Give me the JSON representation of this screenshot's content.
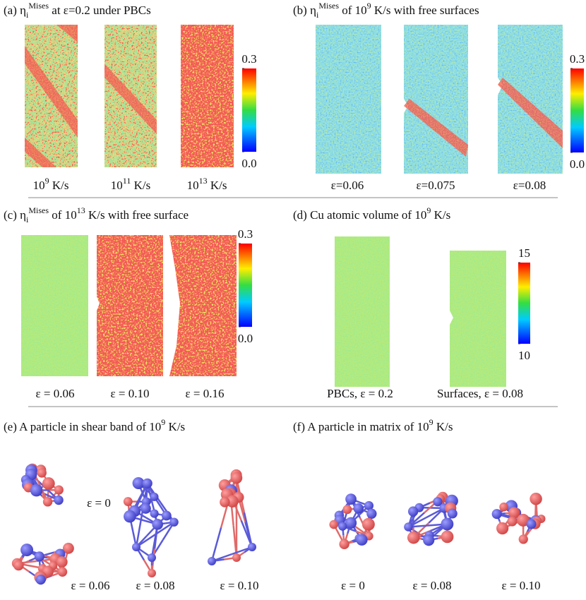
{
  "panels": {
    "a": {
      "title": [
        {
          "text": "(a) η",
          "sub": "i",
          "sup": "Mises"
        },
        {
          "text": " at ε=0.2 under PBCs"
        }
      ],
      "labels": [
        [
          {
            "text": "10",
            "sup": "9"
          },
          {
            "text": " K/s"
          }
        ],
        [
          {
            "text": "10",
            "sup": "11"
          },
          {
            "text": " K/s"
          }
        ],
        [
          {
            "text": "10",
            "sup": "13"
          },
          {
            "text": " K/s"
          }
        ]
      ],
      "colorbar": {
        "ylim": [
          0,
          0.3
        ],
        "yticks": [
          {
            "value": 0,
            "label": "0.0"
          },
          0.3
        ]
      }
    },
    "b": {
      "title": [
        {
          "text": "(b) η",
          "sub": "i",
          "sup": "Mises"
        },
        {
          "text": " of 10",
          "sup": "9"
        },
        {
          "text": " K/s with free surfaces"
        }
      ],
      "labels": [
        [
          {
            "text": "ε=0.06"
          }
        ],
        [
          {
            "text": "ε=0.075"
          }
        ],
        [
          {
            "text": "ε=0.08"
          }
        ]
      ],
      "colorbar": {
        "ylim": [
          0,
          0.3
        ],
        "yticks": [
          {
            "value": 0,
            "label": "0.0"
          },
          0.3
        ]
      }
    },
    "c": {
      "title": [
        {
          "text": "(c) η",
          "sub": "i",
          "sup": "Mises"
        },
        {
          "text": " of 10",
          "sup": "13"
        },
        {
          "text": " K/s with free surface"
        }
      ],
      "labels": [
        [
          {
            "text": "ε = 0.06"
          }
        ],
        [
          {
            "text": "ε = 0.10"
          }
        ],
        [
          {
            "text": "ε = 0.16"
          }
        ]
      ],
      "colorbar": {
        "ylim": [
          0,
          0.3
        ],
        "yticks": [
          {
            "value": 0,
            "label": "0.0"
          },
          0.3
        ]
      }
    },
    "d": {
      "title": [
        {
          "text": "(d) Cu atomic volume of 10",
          "sup": "9"
        },
        {
          "text": " K/s"
        }
      ],
      "labels": [
        [
          {
            "text": "PBCs, ε = 0.2"
          }
        ],
        [
          {
            "text": "Surfaces, ε = 0.08"
          }
        ]
      ],
      "colorbar": {
        "ylim": [
          10,
          15
        ],
        "yticks": [
          10,
          15
        ]
      }
    },
    "e": {
      "title": [
        {
          "text": "(e) A particle in shear band of 10",
          "sup": "9"
        },
        {
          "text": " K/s"
        }
      ],
      "labels": [
        [
          {
            "text": "ε = 0"
          }
        ],
        [
          {
            "text": "ε = 0.06"
          }
        ],
        [
          {
            "text": "ε = 0.08"
          }
        ],
        [
          {
            "text": "ε = 0.10"
          }
        ]
      ]
    },
    "f": {
      "title": [
        {
          "text": "(f) A particle in matrix of 10",
          "sup": "9"
        },
        {
          "text": " K/s"
        }
      ],
      "labels": [
        [
          {
            "text": "ε = 0"
          }
        ],
        [
          {
            "text": "ε = 0.08"
          }
        ],
        [
          {
            "text": "ε = 0.10"
          }
        ]
      ]
    }
  }
}
